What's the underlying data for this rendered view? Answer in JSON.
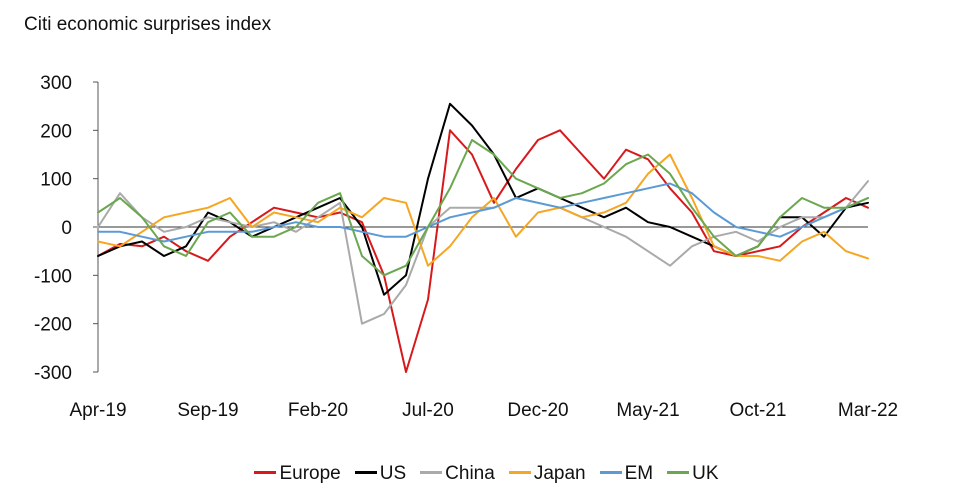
{
  "chart_data": {
    "type": "line",
    "title": "Citi economic surprises index",
    "xlabel": "",
    "ylabel": "",
    "ylim": [
      -300,
      300
    ],
    "yticks": [
      300,
      200,
      100,
      0,
      -100,
      -200,
      -300
    ],
    "xlim": [
      0,
      35
    ],
    "xtick_labels": [
      "Apr-19",
      "Sep-19",
      "Feb-20",
      "Jul-20",
      "Dec-20",
      "May-21",
      "Oct-21",
      "Mar-22"
    ],
    "xtick_positions": [
      0,
      5,
      10,
      15,
      20,
      25,
      30,
      35
    ],
    "x": [
      0,
      1,
      2,
      3,
      4,
      5,
      6,
      7,
      8,
      9,
      10,
      11,
      12,
      13,
      14,
      15,
      16,
      17,
      18,
      19,
      20,
      21,
      22,
      23,
      24,
      25,
      26,
      27,
      28,
      29,
      30,
      31,
      32,
      33,
      34,
      35
    ],
    "series": [
      {
        "name": "Europe",
        "color": "#d7191c",
        "values": [
          -60,
          -35,
          -40,
          -20,
          -50,
          -70,
          -20,
          10,
          40,
          30,
          20,
          30,
          10,
          -100,
          -300,
          -150,
          200,
          150,
          50,
          120,
          180,
          200,
          150,
          100,
          160,
          140,
          80,
          30,
          -50,
          -60,
          -50,
          -40,
          0,
          30,
          60,
          40
        ]
      },
      {
        "name": "US",
        "color": "#000000",
        "values": [
          -60,
          -40,
          -30,
          -60,
          -40,
          30,
          10,
          -20,
          0,
          20,
          40,
          60,
          0,
          -140,
          -100,
          100,
          255,
          210,
          150,
          60,
          80,
          60,
          40,
          20,
          40,
          10,
          0,
          -20,
          -40,
          -60,
          -40,
          20,
          20,
          -20,
          40,
          50
        ]
      },
      {
        "name": "China",
        "color": "#aaaaaa",
        "values": [
          0,
          70,
          20,
          -10,
          0,
          20,
          10,
          0,
          10,
          -10,
          20,
          50,
          -200,
          -180,
          -120,
          0,
          40,
          40,
          40,
          60,
          50,
          40,
          20,
          0,
          -20,
          -50,
          -80,
          -40,
          -20,
          -10,
          -30,
          0,
          20,
          20,
          40,
          95
        ]
      },
      {
        "name": "Japan",
        "color": "#f5a623",
        "values": [
          -30,
          -40,
          -10,
          20,
          30,
          40,
          60,
          0,
          30,
          20,
          10,
          40,
          20,
          60,
          50,
          -80,
          -40,
          20,
          60,
          -20,
          30,
          40,
          20,
          30,
          50,
          110,
          150,
          60,
          -40,
          -60,
          -60,
          -70,
          -30,
          -10,
          -50,
          -65
        ]
      },
      {
        "name": "EM",
        "color": "#5b9bd5",
        "values": [
          -10,
          -10,
          -20,
          -30,
          -20,
          -10,
          -10,
          -10,
          0,
          10,
          0,
          0,
          -10,
          -20,
          -20,
          0,
          20,
          30,
          40,
          60,
          50,
          40,
          50,
          60,
          70,
          80,
          90,
          70,
          30,
          0,
          -10,
          -20,
          0,
          20,
          40,
          60
        ]
      },
      {
        "name": "UK",
        "color": "#6aa84f",
        "values": [
          30,
          60,
          20,
          -40,
          -60,
          10,
          30,
          -20,
          -20,
          0,
          50,
          70,
          -60,
          -100,
          -80,
          0,
          80,
          180,
          150,
          100,
          80,
          60,
          70,
          90,
          130,
          150,
          110,
          40,
          -20,
          -60,
          -40,
          20,
          60,
          40,
          40,
          60
        ]
      }
    ]
  }
}
